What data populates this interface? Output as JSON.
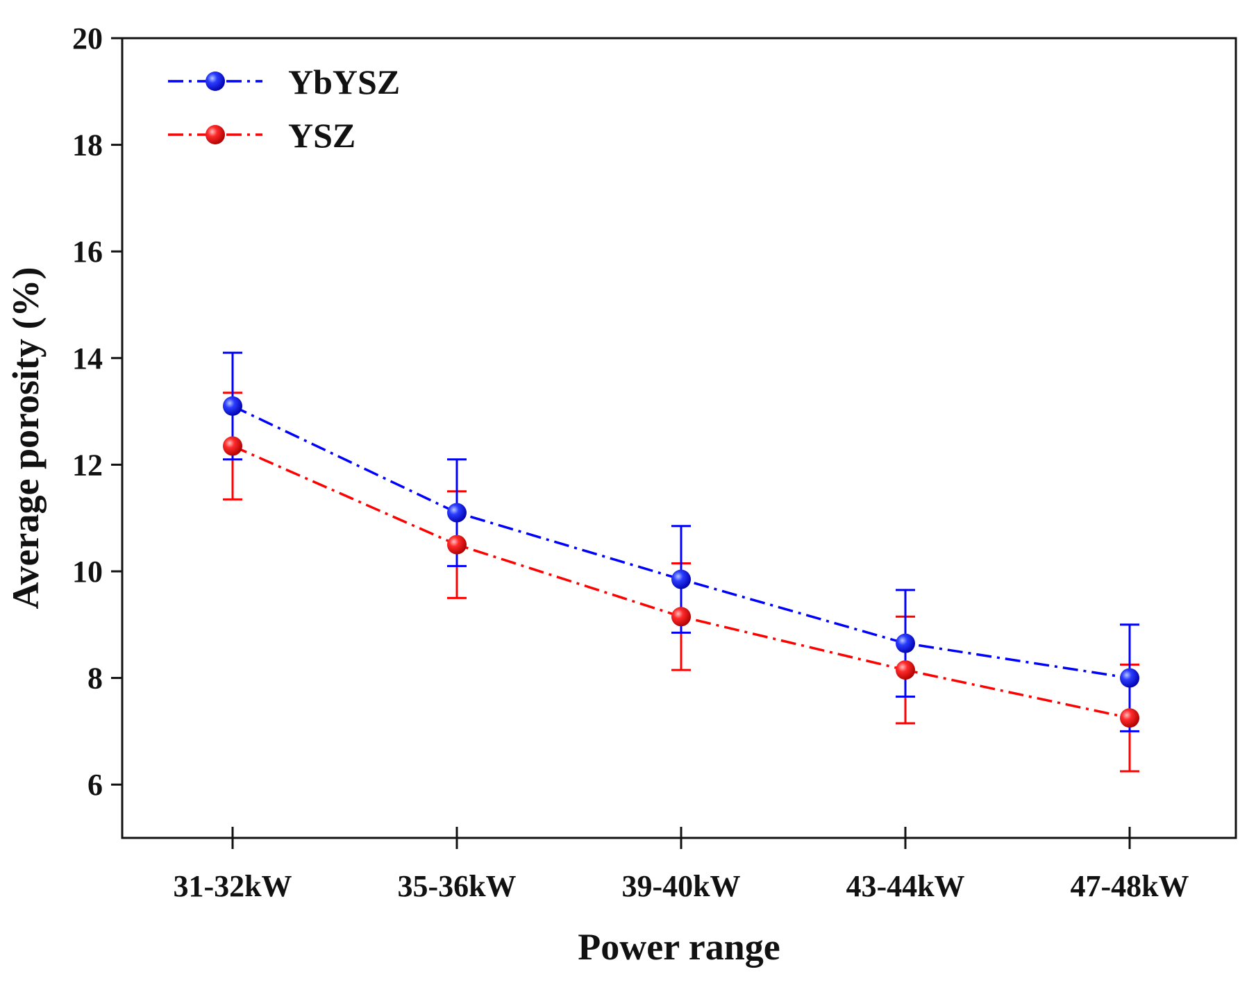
{
  "chart_data": {
    "type": "line",
    "title": "",
    "xlabel": "Power range",
    "ylabel": "Average porosity (%)",
    "categories": [
      "31-32kW",
      "35-36kW",
      "39-40kW",
      "43-44kW",
      "47-48kW"
    ],
    "ylim": [
      5,
      20
    ],
    "yticks": [
      6,
      8,
      10,
      12,
      14,
      16,
      18,
      20
    ],
    "grid": false,
    "legend_position": "top-left",
    "series": [
      {
        "name": "YbYSZ",
        "color": "#0000ff",
        "values": [
          13.1,
          11.1,
          9.85,
          8.65,
          8.0
        ],
        "error": [
          1.0,
          1.0,
          1.0,
          1.0,
          1.0
        ]
      },
      {
        "name": "YSZ",
        "color": "#ff0000",
        "values": [
          12.35,
          10.5,
          9.15,
          8.15,
          7.25
        ],
        "error": [
          1.0,
          1.0,
          1.0,
          1.0,
          1.0
        ]
      }
    ]
  }
}
